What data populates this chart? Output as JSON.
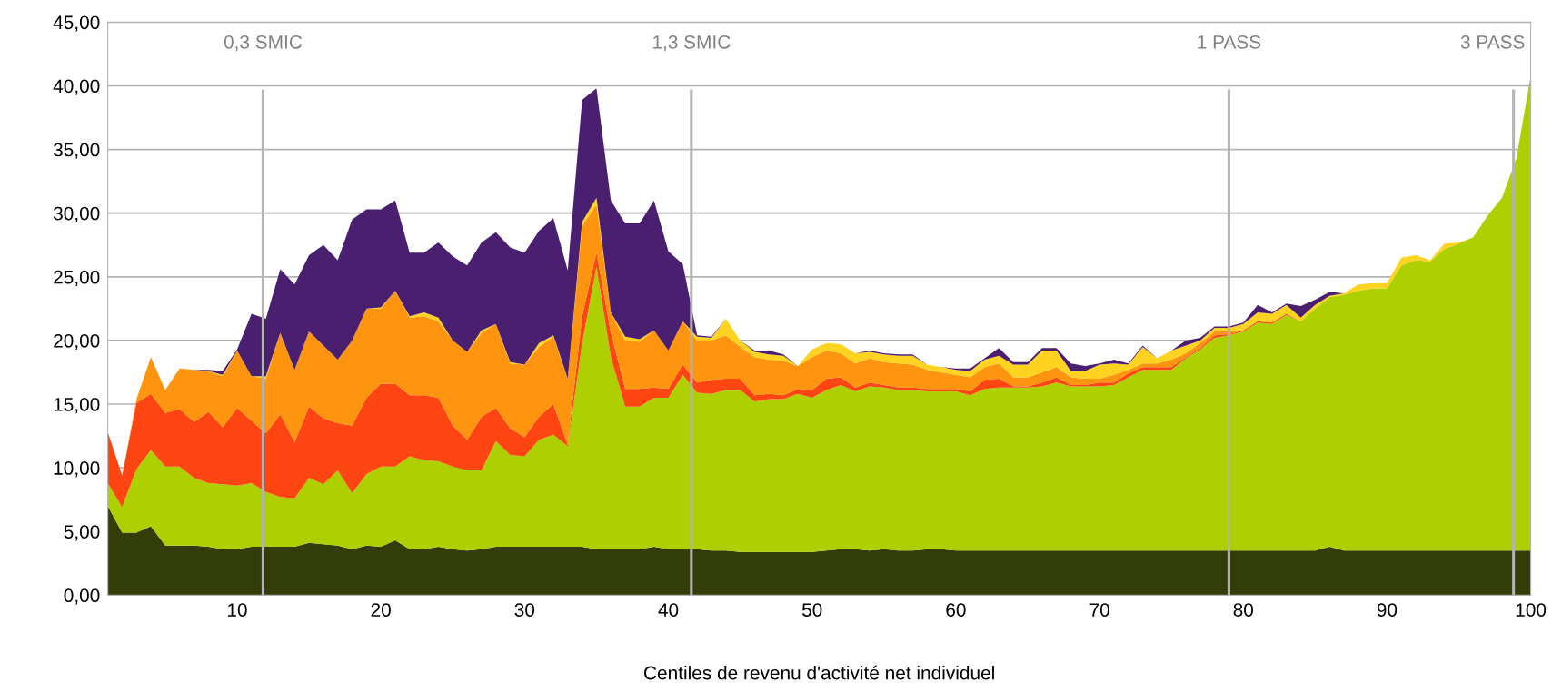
{
  "chart_data": {
    "type": "area",
    "stacked": true,
    "xlabel": "Centiles de revenu d'activité net individuel",
    "x": [
      1,
      2,
      3,
      4,
      5,
      6,
      7,
      8,
      9,
      10,
      11,
      12,
      13,
      14,
      15,
      16,
      17,
      18,
      19,
      20,
      21,
      22,
      23,
      24,
      25,
      26,
      27,
      28,
      29,
      30,
      31,
      32,
      33,
      34,
      35,
      36,
      37,
      38,
      39,
      40,
      41,
      42,
      43,
      44,
      45,
      46,
      47,
      48,
      49,
      50,
      51,
      52,
      53,
      54,
      55,
      56,
      57,
      58,
      59,
      60,
      61,
      62,
      63,
      64,
      65,
      66,
      67,
      68,
      69,
      70,
      71,
      72,
      73,
      74,
      75,
      76,
      77,
      78,
      79,
      80,
      81,
      82,
      83,
      84,
      85,
      86,
      87,
      88,
      89,
      90,
      91,
      92,
      93,
      94,
      95,
      96,
      97,
      98,
      99,
      100
    ],
    "series": [
      {
        "color": "#333d08",
        "values": [
          7.0,
          4.9,
          4.9,
          5.4,
          3.9,
          3.9,
          3.9,
          3.8,
          3.6,
          3.6,
          3.8,
          3.8,
          3.8,
          3.8,
          4.1,
          4.0,
          3.9,
          3.6,
          3.9,
          3.8,
          4.3,
          3.6,
          3.6,
          3.8,
          3.6,
          3.5,
          3.6,
          3.8,
          3.8,
          3.8,
          3.8,
          3.8,
          3.8,
          3.8,
          3.6,
          3.6,
          3.6,
          3.6,
          3.8,
          3.6,
          3.6,
          3.6,
          3.5,
          3.5,
          3.4,
          3.4,
          3.4,
          3.4,
          3.4,
          3.4,
          3.5,
          3.6,
          3.6,
          3.5,
          3.6,
          3.5,
          3.5,
          3.6,
          3.6,
          3.5,
          3.5,
          3.5,
          3.5,
          3.5,
          3.5,
          3.5,
          3.5,
          3.5,
          3.5,
          3.5,
          3.5,
          3.5,
          3.5,
          3.5,
          3.5,
          3.5,
          3.5,
          3.5,
          3.5,
          3.5,
          3.5,
          3.5,
          3.5,
          3.5,
          3.5,
          3.8,
          3.5,
          3.5,
          3.5,
          3.5,
          3.5,
          3.5,
          3.5,
          3.5,
          3.5,
          3.5,
          3.5,
          3.5,
          3.5,
          3.5
        ]
      },
      {
        "color": "#aecf00",
        "values": [
          1.8,
          2.0,
          5.0,
          6.0,
          6.2,
          6.2,
          5.3,
          5.0,
          5.1,
          5.0,
          5.0,
          4.3,
          3.9,
          3.8,
          5.1,
          4.7,
          5.9,
          4.4,
          5.6,
          6.3,
          5.8,
          7.3,
          7.0,
          6.7,
          6.5,
          6.3,
          6.2,
          8.3,
          7.2,
          7.1,
          8.4,
          8.8,
          7.9,
          16.0,
          22.2,
          15.1,
          11.2,
          11.2,
          11.7,
          11.9,
          13.7,
          12.3,
          12.3,
          12.6,
          12.7,
          11.8,
          12.0,
          12.0,
          12.4,
          12.1,
          12.6,
          12.9,
          12.4,
          12.9,
          12.7,
          12.6,
          12.6,
          12.4,
          12.4,
          12.5,
          12.2,
          12.7,
          12.8,
          12.8,
          12.8,
          12.9,
          13.2,
          12.9,
          12.9,
          12.9,
          13.0,
          13.6,
          14.2,
          14.2,
          14.2,
          15.1,
          15.8,
          16.7,
          16.9,
          17.2,
          17.9,
          17.8,
          18.5,
          18.0,
          19.0,
          19.6,
          20.1,
          20.4,
          20.6,
          20.6,
          22.4,
          22.8,
          22.7,
          23.7,
          24.1,
          24.6,
          26.3,
          27.7,
          30.8,
          37.3
        ]
      },
      {
        "color": "#ff4512",
        "values": [
          4.0,
          2.5,
          5.2,
          4.4,
          4.2,
          4.5,
          4.4,
          5.6,
          4.5,
          6.1,
          4.9,
          4.6,
          6.5,
          4.4,
          5.6,
          5.2,
          3.7,
          5.3,
          6.0,
          6.5,
          6.5,
          4.8,
          5.1,
          5.0,
          3.2,
          2.4,
          4.2,
          2.6,
          2.1,
          1.5,
          1.8,
          2.4,
          0.1,
          2.1,
          1.1,
          1.9,
          1.4,
          1.4,
          0.8,
          0.7,
          0.8,
          0.8,
          1.1,
          0.9,
          0.9,
          0.5,
          0.4,
          0.3,
          0.4,
          0.6,
          0.9,
          0.6,
          0.3,
          0.3,
          0.2,
          0.2,
          0.2,
          0.2,
          0.2,
          0.2,
          0.3,
          0.7,
          0.7,
          0.1,
          0.1,
          0.3,
          0.4,
          0.1,
          0.1,
          0.3,
          0.2,
          0.3,
          0.2,
          0.2,
          0.2,
          0.1,
          0.1,
          0.2,
          0.1,
          0.1,
          0.1,
          0.1,
          0.1,
          0,
          null,
          null,
          null,
          null,
          null,
          null,
          null,
          null,
          null,
          null,
          null,
          null,
          null,
          null,
          null,
          null
        ]
      },
      {
        "color": "#ff950e",
        "values": [
          null,
          0,
          0.3,
          2.9,
          1.8,
          3.2,
          4.1,
          3.2,
          4.0,
          4.5,
          3.5,
          4.3,
          6.4,
          5.7,
          5.9,
          5.7,
          5.0,
          6.7,
          7.0,
          5.9,
          7.3,
          6.1,
          6.2,
          6.0,
          6.7,
          6.9,
          6.6,
          6.6,
          5.1,
          5.7,
          5.5,
          5.3,
          5.2,
          7.1,
          3.8,
          1.6,
          3.8,
          3.7,
          4.5,
          3.0,
          3.4,
          3.3,
          3.1,
          3.4,
          2.5,
          3.0,
          2.7,
          2.7,
          1.8,
          2.6,
          2.2,
          1.9,
          1.9,
          1.9,
          1.8,
          1.9,
          1.8,
          1.5,
          1.3,
          1.1,
          1.1,
          1.0,
          1.2,
          0.7,
          0.7,
          0.8,
          0.8,
          0.6,
          0.5,
          0.3,
          0.6,
          0.3,
          0.3,
          0.3,
          0.6,
          0.3,
          0.4,
          0.3,
          0.2,
          0,
          null,
          null,
          null,
          null,
          null,
          null,
          null,
          null,
          null,
          null,
          null,
          null,
          null,
          null,
          null,
          null,
          null,
          null,
          null,
          null
        ]
      },
      {
        "color": "#ffd320",
        "values": [
          null,
          null,
          null,
          null,
          null,
          null,
          null,
          0,
          0.1,
          0,
          0,
          0.2,
          0,
          null,
          null,
          null,
          null,
          null,
          0,
          0.1,
          0,
          0.1,
          0.3,
          0.3,
          0,
          0,
          0.2,
          0,
          0.1,
          0,
          0.3,
          0.1,
          0,
          0.3,
          0.5,
          0,
          0.3,
          0.2,
          0,
          null,
          0,
          0.3,
          0.2,
          1.3,
          0.5,
          0.4,
          0.4,
          0.4,
          0,
          0.6,
          0.6,
          0.7,
          0.8,
          0.5,
          0.6,
          0.6,
          0.7,
          0.4,
          0.4,
          0.4,
          0.5,
          0.6,
          0.6,
          1.0,
          1.0,
          1.7,
          1.3,
          0.5,
          0.6,
          1.1,
          0.9,
          0.4,
          1.3,
          0.4,
          0.7,
          0.6,
          0.2,
          0.3,
          0.3,
          0.5,
          0.7,
          0.7,
          0.7,
          0.3,
          0.3,
          0.1,
          0.1,
          0.5,
          0.4,
          0.4,
          0.6,
          0.4,
          0.1,
          0.4,
          0.1,
          0,
          null,
          null,
          null,
          null
        ]
      },
      {
        "color": "#4b1f6f",
        "values": [
          null,
          null,
          null,
          null,
          null,
          null,
          0,
          0.1,
          0.3,
          0.1,
          4.9,
          4.5,
          5.0,
          6.7,
          6.0,
          7.9,
          7.8,
          9.5,
          7.8,
          7.7,
          7.1,
          5.0,
          4.7,
          5.9,
          6.6,
          6.8,
          6.9,
          7.2,
          9.0,
          8.8,
          8.8,
          9.2,
          8.5,
          9.6,
          8.6,
          8.8,
          8.9,
          9.1,
          10.2,
          7.8,
          4.5,
          0.1,
          0.1,
          0,
          0,
          0.1,
          0.3,
          0.1,
          0,
          null,
          null,
          null,
          0,
          0.1,
          0.1,
          0.1,
          0.1,
          0,
          0,
          0.1,
          0.2,
          0.1,
          0.6,
          0.2,
          0.2,
          0.2,
          0.2,
          0.6,
          0.4,
          0.1,
          0.3,
          0.1,
          0.1,
          0,
          0,
          0.4,
          0.2,
          0.1,
          0.1,
          0.1,
          0.6,
          0.1,
          0.1,
          0.9,
          0.4,
          0.3,
          0,
          null,
          null,
          null,
          null,
          null,
          null,
          null,
          null,
          null,
          null,
          null,
          null,
          null
        ]
      }
    ],
    "xlim": [
      1,
      100
    ],
    "xticks": [
      10,
      20,
      30,
      40,
      50,
      60,
      70,
      80,
      90,
      100
    ],
    "ylim": [
      0,
      45
    ],
    "yticks": [
      {
        "value": 0,
        "label": "0,00"
      },
      {
        "value": 5,
        "label": "5,00"
      },
      {
        "value": 10,
        "label": "10,00"
      },
      {
        "value": 15,
        "label": "15,00"
      },
      {
        "value": 20,
        "label": "20,00"
      },
      {
        "value": 25,
        "label": "25,00"
      },
      {
        "value": 30,
        "label": "30,00"
      },
      {
        "value": 35,
        "label": "35,00"
      },
      {
        "value": 40,
        "label": "40,00"
      },
      {
        "value": 45,
        "label": "45,00"
      }
    ],
    "grid": "y",
    "ref_lines": [
      {
        "axis": "x",
        "value": 11.8,
        "label": "0,3 SMIC",
        "color": "#b3b3b3"
      },
      {
        "axis": "x",
        "value": 41.6,
        "label": "1,3 SMIC",
        "color": "#b3b3b3"
      },
      {
        "axis": "x",
        "value": 79.0,
        "label": "1 PASS",
        "color": "#b3b3b3"
      },
      {
        "axis": "x",
        "value": 98.8,
        "label": "3 PASS",
        "color": "#b3b3b3"
      }
    ]
  }
}
